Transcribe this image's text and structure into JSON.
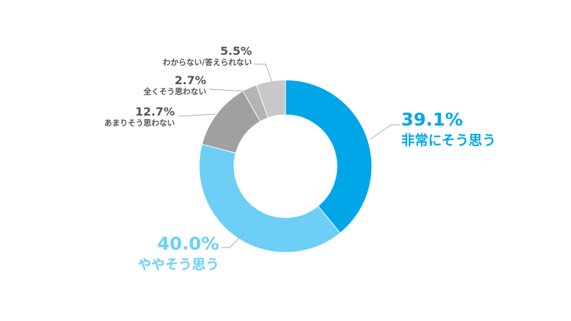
{
  "chart_data": {
    "type": "pie",
    "donut": true,
    "title": "",
    "slices": [
      {
        "label": "非常にそう思う",
        "value": 39.1,
        "display": "39.1%",
        "color": "#00a6e8"
      },
      {
        "label": "ややそう思う",
        "value": 40.0,
        "display": "40.0%",
        "color": "#6dcff6"
      },
      {
        "label": "あまりそう思わない",
        "value": 12.7,
        "display": "12.7%",
        "color": "#a0a0a0"
      },
      {
        "label": "全くそう思わない",
        "value": 2.7,
        "display": "2.7%",
        "color": "#b4b4b4"
      },
      {
        "label": "わからない/答えられない",
        "value": 5.5,
        "display": "5.5%",
        "color": "#c8c8c8"
      }
    ]
  }
}
